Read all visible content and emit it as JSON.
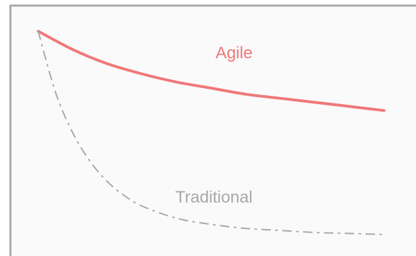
{
  "chart_data": {
    "type": "line",
    "title": "",
    "xlabel": "",
    "ylabel": "",
    "x_ticks_shown": false,
    "y_ticks_shown": false,
    "grid": false,
    "legend": "none",
    "xlim": [
      0,
      100
    ],
    "ylim": [
      0,
      100
    ],
    "background_color": "#fafafa",
    "frame_color": "#a8a8a8",
    "series": [
      {
        "name": "Agile",
        "color": "#f07878",
        "line_style": "solid",
        "label_position": "upper-right",
        "x": [
          0,
          10,
          20,
          30,
          40,
          50,
          60,
          70,
          80,
          90,
          100
        ],
        "y": [
          100,
          91,
          84,
          79,
          75,
          72,
          69,
          67,
          65,
          63,
          61
        ]
      },
      {
        "name": "Traditional",
        "color": "#a8a8a8",
        "line_style": "dash-dot",
        "label_position": "lower-middle",
        "x": [
          0,
          5,
          10,
          15,
          20,
          25,
          30,
          40,
          50,
          60,
          70,
          80,
          90,
          100
        ],
        "y": [
          100,
          70,
          50,
          36,
          26,
          19,
          14,
          8,
          5,
          3,
          2,
          1,
          0.5,
          0
        ]
      }
    ]
  }
}
